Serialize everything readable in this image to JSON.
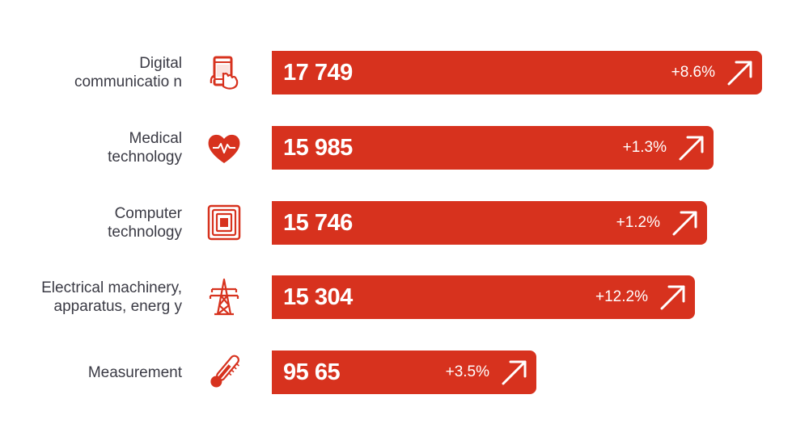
{
  "chart_data": {
    "type": "bar",
    "orientation": "horizontal",
    "categories": [
      [
        "Digital",
        "communicatio n"
      ],
      [
        "Medical",
        "technology"
      ],
      [
        "Computer",
        "technology"
      ],
      [
        "Electrical machinery,",
        "apparatus, energ y"
      ],
      [
        "Measurement"
      ]
    ],
    "values": [
      17749,
      15985,
      15746,
      15304,
      9565
    ],
    "value_labels": [
      "17 749",
      "15 985",
      "15 746",
      "15 304",
      "95 65"
    ],
    "changes": [
      "+8.6%",
      "+1.3%",
      "+1.2%",
      "+12.2%",
      "+3.5%"
    ],
    "icons": [
      "smartphone-touch-icon",
      "heart-pulse-icon",
      "chip-icon",
      "power-pylon-icon",
      "thermometer-icon"
    ],
    "bar_color": "#d7321e",
    "text_color": "#3a3a44",
    "xlim": [
      0,
      17749
    ]
  }
}
